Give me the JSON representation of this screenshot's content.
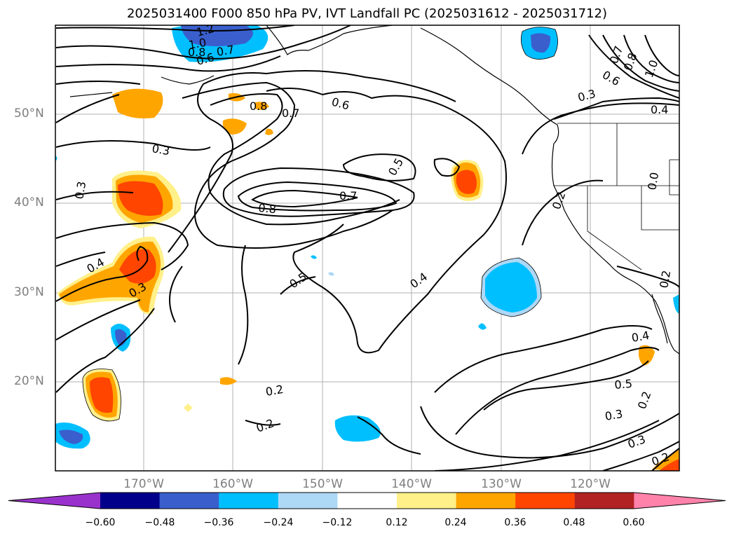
{
  "title": "2025031400 F000 850 hPa PV, IVT Landfall PC (2025031612 - 2025031712)",
  "axes": {
    "lat_ticks": [
      "50°N",
      "40°N",
      "30°N",
      "20°N"
    ],
    "lon_ticks": [
      "170°W",
      "160°W",
      "150°W",
      "140°W",
      "130°W",
      "120°W"
    ]
  },
  "colorbar": {
    "colors": [
      "#9932cc",
      "#00008b",
      "#3a5fcd",
      "#00bfff",
      "#add8f6",
      "#ffffff",
      "#fff08a",
      "#ffa500",
      "#ff4500",
      "#b22222",
      "#ff82ab"
    ],
    "ticks": [
      "−0.60",
      "−0.48",
      "−0.36",
      "−0.24",
      "−0.12",
      "0.12",
      "0.24",
      "0.36",
      "0.48",
      "0.60"
    ]
  },
  "contour_labels": [
    "1.2",
    "1.0",
    "0.8",
    "0.7",
    "0.6",
    "0.8",
    "0.7",
    "0.6",
    "0.3",
    "0.3",
    "0.4",
    "0.3",
    "0.8",
    "0.7",
    "0.5",
    "0.5",
    "0.4",
    "0.2",
    "0.2",
    "0.4",
    "0.5",
    "0.3",
    "0.3",
    "0.2",
    "0.2",
    "0.7",
    "0.8",
    "1.0",
    "0.6",
    "0.3",
    "0.4",
    "0.2",
    "0.0",
    "0.2"
  ]
}
